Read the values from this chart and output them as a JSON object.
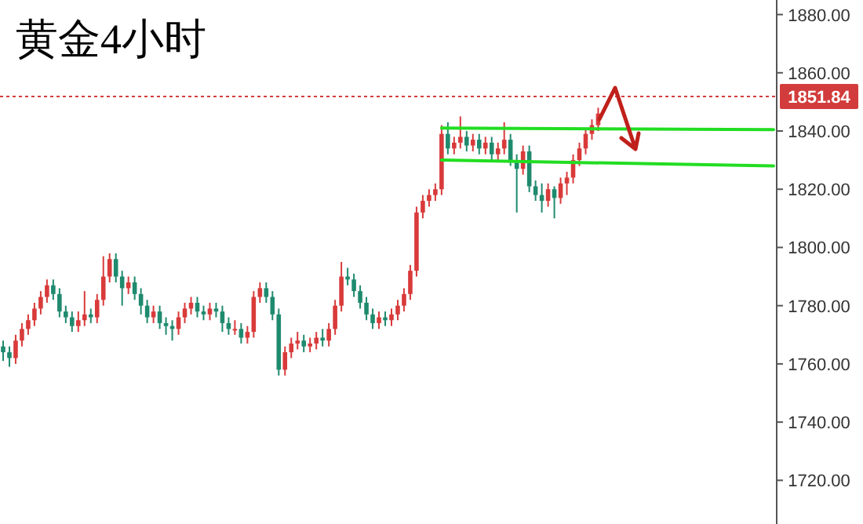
{
  "chart_data": {
    "type": "candlestick",
    "title": "黄金4小时",
    "categories": [
      null,
      null,
      null,
      null,
      null,
      null,
      null,
      null,
      null,
      null,
      null,
      null,
      null,
      null,
      null,
      null,
      null,
      null,
      null,
      null,
      null,
      null,
      null,
      null,
      null,
      null,
      null,
      null,
      null,
      null,
      null,
      null,
      null,
      null,
      null,
      null,
      null,
      null,
      null,
      null,
      null,
      null,
      null,
      null,
      null,
      null,
      null,
      null,
      null,
      null,
      null,
      null,
      null,
      null,
      null,
      null,
      null,
      null,
      null,
      null,
      null,
      null,
      null,
      null,
      null,
      null,
      null,
      null,
      null,
      null,
      null,
      null,
      null,
      null,
      null,
      null,
      null,
      null,
      null,
      null,
      null,
      null,
      null,
      null,
      null,
      null,
      null,
      null,
      null,
      null,
      null,
      null,
      null,
      null,
      null,
      null,
      null,
      null,
      null,
      null,
      null,
      null,
      null,
      null,
      null,
      null,
      null,
      null,
      null,
      null,
      null,
      null,
      null,
      null,
      null,
      null,
      null,
      null,
      null,
      null,
      null,
      null,
      null,
      null
    ],
    "ohlc": [
      [
        1766,
        1768,
        1761,
        1764
      ],
      [
        1764,
        1766,
        1759,
        1762
      ],
      [
        1762,
        1770,
        1760,
        1768
      ],
      [
        1768,
        1774,
        1766,
        1772
      ],
      [
        1772,
        1777,
        1770,
        1775
      ],
      [
        1775,
        1781,
        1773,
        1779
      ],
      [
        1779,
        1785,
        1777,
        1783
      ],
      [
        1783,
        1789,
        1781,
        1787
      ],
      [
        1787,
        1789,
        1782,
        1784
      ],
      [
        1784,
        1786,
        1776,
        1778
      ],
      [
        1778,
        1780,
        1774,
        1776
      ],
      [
        1776,
        1778,
        1771,
        1773
      ],
      [
        1773,
        1778,
        1771,
        1775
      ],
      [
        1775,
        1785,
        1773,
        1777
      ],
      [
        1777,
        1779,
        1774,
        1776
      ],
      [
        1776,
        1784,
        1774,
        1782
      ],
      [
        1782,
        1797,
        1780,
        1790
      ],
      [
        1790,
        1798,
        1788,
        1796
      ],
      [
        1796,
        1798,
        1788,
        1790
      ],
      [
        1790,
        1792,
        1780,
        1786
      ],
      [
        1786,
        1790,
        1784,
        1788
      ],
      [
        1788,
        1790,
        1782,
        1784
      ],
      [
        1784,
        1786,
        1777,
        1780
      ],
      [
        1780,
        1782,
        1774,
        1776
      ],
      [
        1776,
        1780,
        1774,
        1778
      ],
      [
        1778,
        1780,
        1772,
        1774
      ],
      [
        1774,
        1776,
        1770,
        1773
      ],
      [
        1773,
        1775,
        1768,
        1772
      ],
      [
        1772,
        1778,
        1770,
        1776
      ],
      [
        1776,
        1781,
        1774,
        1779
      ],
      [
        1779,
        1783,
        1777,
        1781
      ],
      [
        1781,
        1783,
        1776,
        1778
      ],
      [
        1778,
        1780,
        1775,
        1777
      ],
      [
        1777,
        1781,
        1775,
        1779
      ],
      [
        1779,
        1781,
        1776,
        1778
      ],
      [
        1778,
        1780,
        1771,
        1774
      ],
      [
        1774,
        1776,
        1770,
        1772
      ],
      [
        1772,
        1775,
        1770,
        1772
      ],
      [
        1772,
        1774,
        1767,
        1769
      ],
      [
        1769,
        1773,
        1767,
        1771
      ],
      [
        1771,
        1785,
        1769,
        1783
      ],
      [
        1783,
        1788,
        1781,
        1786
      ],
      [
        1786,
        1788,
        1781,
        1783
      ],
      [
        1783,
        1785,
        1775,
        1777
      ],
      [
        1777,
        1779,
        1756,
        1758
      ],
      [
        1758,
        1766,
        1756,
        1764
      ],
      [
        1764,
        1769,
        1762,
        1767
      ],
      [
        1767,
        1771,
        1765,
        1768
      ],
      [
        1768,
        1770,
        1764,
        1766
      ],
      [
        1766,
        1769,
        1764,
        1767
      ],
      [
        1767,
        1771,
        1765,
        1769
      ],
      [
        1769,
        1772,
        1766,
        1768
      ],
      [
        1768,
        1774,
        1766,
        1772
      ],
      [
        1772,
        1782,
        1770,
        1780
      ],
      [
        1780,
        1795,
        1778,
        1790
      ],
      [
        1790,
        1793,
        1787,
        1789
      ],
      [
        1789,
        1791,
        1783,
        1785
      ],
      [
        1785,
        1787,
        1779,
        1781
      ],
      [
        1781,
        1783,
        1775,
        1777
      ],
      [
        1777,
        1779,
        1772,
        1774
      ],
      [
        1774,
        1778,
        1772,
        1776
      ],
      [
        1776,
        1778,
        1773,
        1775
      ],
      [
        1775,
        1779,
        1773,
        1777
      ],
      [
        1777,
        1782,
        1775,
        1780
      ],
      [
        1780,
        1786,
        1778,
        1784
      ],
      [
        1784,
        1794,
        1782,
        1792
      ],
      [
        1792,
        1814,
        1790,
        1812
      ],
      [
        1812,
        1818,
        1810,
        1816
      ],
      [
        1816,
        1820,
        1814,
        1818
      ],
      [
        1818,
        1822,
        1816,
        1820
      ],
      [
        1820,
        1842,
        1818,
        1839
      ],
      [
        1839,
        1843,
        1832,
        1834
      ],
      [
        1834,
        1838,
        1832,
        1836
      ],
      [
        1836,
        1845,
        1834,
        1838
      ],
      [
        1838,
        1840,
        1833,
        1835
      ],
      [
        1835,
        1839,
        1833,
        1837
      ],
      [
        1837,
        1839,
        1832,
        1834
      ],
      [
        1834,
        1838,
        1832,
        1836
      ],
      [
        1836,
        1838,
        1830,
        1832
      ],
      [
        1832,
        1836,
        1830,
        1834
      ],
      [
        1834,
        1843,
        1832,
        1837
      ],
      [
        1837,
        1839,
        1828,
        1830
      ],
      [
        1830,
        1832,
        1812,
        1827
      ],
      [
        1827,
        1835,
        1825,
        1833
      ],
      [
        1833,
        1835,
        1819,
        1821
      ],
      [
        1821,
        1823,
        1816,
        1818
      ],
      [
        1818,
        1822,
        1812,
        1816
      ],
      [
        1816,
        1822,
        1814,
        1820
      ],
      [
        1820,
        1821,
        1810,
        1817
      ],
      [
        1817,
        1824,
        1815,
        1822
      ],
      [
        1822,
        1826,
        1818,
        1824
      ],
      [
        1824,
        1832,
        1822,
        1830
      ],
      [
        1830,
        1836,
        1828,
        1834
      ],
      [
        1834,
        1841,
        1832,
        1839
      ],
      [
        1839,
        1844,
        1837,
        1842
      ],
      [
        1842,
        1848,
        1840,
        1846
      ],
      null,
      null,
      null,
      null,
      null,
      null,
      null,
      null,
      null,
      null,
      null,
      null,
      null,
      null,
      null,
      null,
      null,
      null,
      null,
      null,
      null,
      null,
      null,
      null,
      null,
      null,
      null,
      null
    ],
    "series": [
      {
        "type": "line",
        "color": "#22dd22",
        "values": [
          null,
          null,
          null,
          null,
          null,
          null,
          null,
          null,
          null,
          null,
          null,
          null,
          null,
          null,
          null,
          null,
          null,
          null,
          null,
          null,
          null,
          null,
          null,
          null,
          null,
          null,
          null,
          null,
          null,
          null,
          null,
          null,
          null,
          null,
          null,
          null,
          null,
          null,
          null,
          null,
          null,
          null,
          null,
          null,
          null,
          null,
          null,
          null,
          null,
          null,
          null,
          null,
          null,
          null,
          null,
          null,
          null,
          null,
          null,
          null,
          null,
          null,
          null,
          null,
          null,
          null,
          null,
          null,
          null,
          null,
          1841,
          null,
          null,
          null,
          null,
          null,
          null,
          null,
          null,
          null,
          null,
          null,
          null,
          null,
          null,
          null,
          null,
          null,
          null,
          null,
          null,
          null,
          null,
          null,
          null,
          null,
          null,
          null,
          null,
          null,
          null,
          null,
          null,
          null,
          null,
          null,
          null,
          null,
          null,
          null,
          null,
          null,
          null,
          null,
          null,
          null,
          null,
          null,
          null,
          null,
          null,
          null,
          null,
          1840.5
        ]
      },
      {
        "type": "line",
        "color": "#22dd22",
        "values": [
          null,
          null,
          null,
          null,
          null,
          null,
          null,
          null,
          null,
          null,
          null,
          null,
          null,
          null,
          null,
          null,
          null,
          null,
          null,
          null,
          null,
          null,
          null,
          null,
          null,
          null,
          null,
          null,
          null,
          null,
          null,
          null,
          null,
          null,
          null,
          null,
          null,
          null,
          null,
          null,
          null,
          null,
          null,
          null,
          null,
          null,
          null,
          null,
          null,
          null,
          null,
          null,
          null,
          null,
          null,
          null,
          null,
          null,
          null,
          null,
          null,
          null,
          null,
          null,
          null,
          null,
          null,
          null,
          null,
          null,
          1830,
          null,
          null,
          null,
          null,
          null,
          null,
          null,
          null,
          null,
          null,
          null,
          null,
          null,
          null,
          null,
          null,
          null,
          null,
          null,
          null,
          null,
          null,
          null,
          null,
          null,
          null,
          null,
          null,
          null,
          null,
          null,
          null,
          null,
          null,
          null,
          null,
          null,
          null,
          null,
          null,
          null,
          null,
          null,
          null,
          null,
          null,
          null,
          null,
          null,
          null,
          null,
          null,
          1828
        ]
      }
    ],
    "ylim": [
      1705,
      1885
    ],
    "yticks": [
      {
        "value": 1720,
        "label": "1720.00"
      },
      {
        "value": 1740,
        "label": "1740.00"
      },
      {
        "value": 1760,
        "label": "1760.00"
      },
      {
        "value": 1780,
        "label": "1780.00"
      },
      {
        "value": 1800,
        "label": "1800.00"
      },
      {
        "value": 1820,
        "label": "1820.00"
      },
      {
        "value": 1840,
        "label": "1840.00"
      },
      {
        "value": 1860,
        "label": "1860.00"
      },
      {
        "value": 1880,
        "label": "1880.00"
      }
    ],
    "ref_lines": [
      {
        "axis": "y",
        "value": 1851.84,
        "label": "1851.84",
        "color": "#d23c3c",
        "line_style": "dotted"
      }
    ],
    "tick_labels": "y"
  }
}
